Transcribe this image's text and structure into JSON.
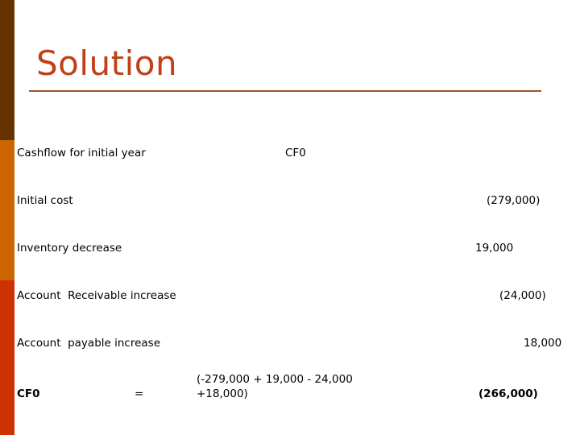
{
  "colors": {
    "bar_top": "#663300",
    "bar_mid": "#cc6600",
    "bar_bottom": "#cc3300",
    "title": "#c0401a"
  },
  "title": "Solution",
  "header": {
    "label": "Cashflow for initial year",
    "column": "CF0"
  },
  "rows": [
    {
      "label": "Initial cost",
      "value": "(279,000)"
    },
    {
      "label": "Inventory decrease",
      "value": "19,000"
    },
    {
      "label": "Account  Receivable increase",
      "value": "(24,000)"
    },
    {
      "label": "Account  payable increase",
      "value": "18,000"
    }
  ],
  "total": {
    "label": "CF0",
    "equals": "=",
    "formula_line1": "(-279,000 + 19,000 - 24,000",
    "formula_line2": "+18,000)",
    "value": "(266,000)"
  }
}
